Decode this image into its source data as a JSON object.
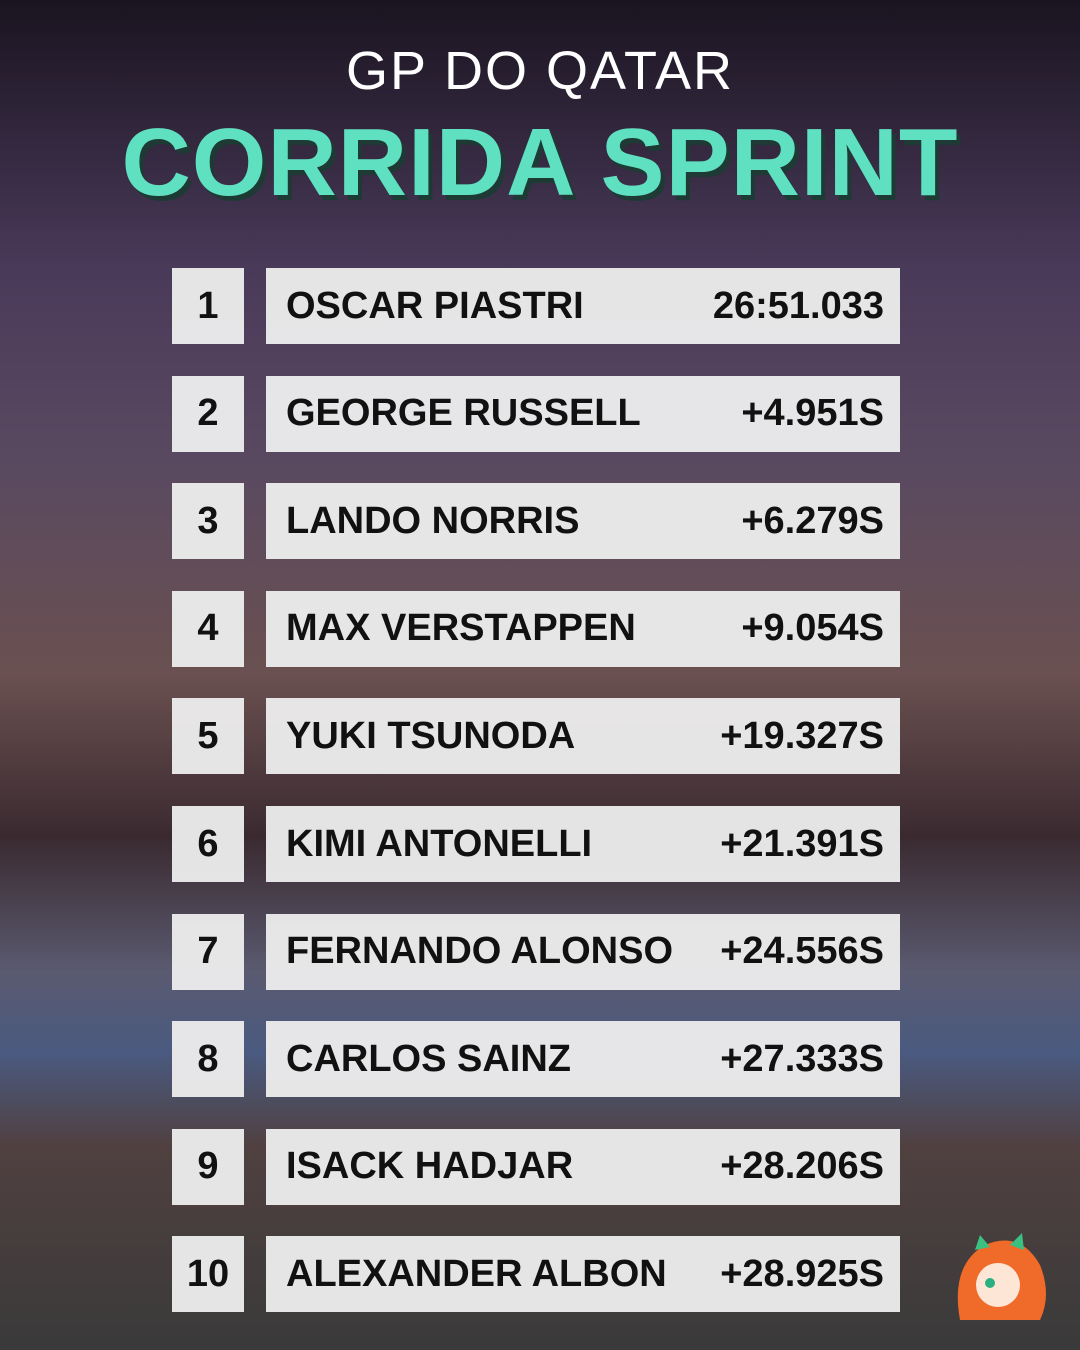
{
  "header": {
    "subtitle": "GP DO QATAR",
    "title": "CORRIDA SPRINT"
  },
  "results": [
    {
      "position": "1",
      "driver": "OSCAR PIASTRI",
      "time": "26:51.033"
    },
    {
      "position": "2",
      "driver": "GEORGE RUSSELL",
      "time": "+4.951S"
    },
    {
      "position": "3",
      "driver": "LANDO NORRIS",
      "time": "+6.279S"
    },
    {
      "position": "4",
      "driver": "MAX VERSTAPPEN",
      "time": "+9.054S"
    },
    {
      "position": "5",
      "driver": "YUKI TSUNODA",
      "time": "+19.327S"
    },
    {
      "position": "6",
      "driver": "KIMI ANTONELLI",
      "time": "+21.391S"
    },
    {
      "position": "7",
      "driver": "FERNANDO ALONSO",
      "time": "+24.556S"
    },
    {
      "position": "8",
      "driver": "CARLOS SAINZ",
      "time": "+27.333S"
    },
    {
      "position": "9",
      "driver": "ISACK HADJAR",
      "time": "+28.206S"
    },
    {
      "position": "10",
      "driver": "ALEXANDER ALBON",
      "time": "+28.925S"
    }
  ]
}
